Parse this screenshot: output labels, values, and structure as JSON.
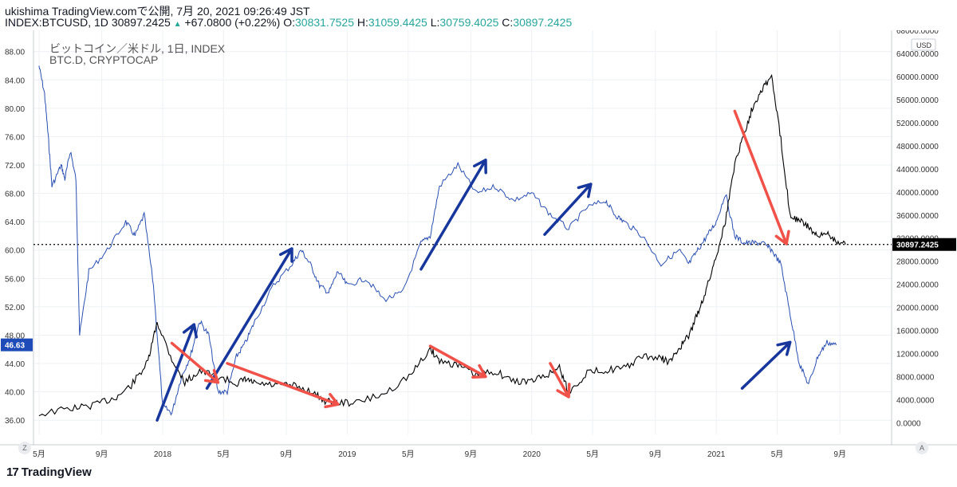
{
  "header": {
    "line1": "ukishima TradingView.comで公開, 7月 20, 2021 09:26:49 JST",
    "symbol": "INDEX:BTCUSD, 1D",
    "last": "30897.2425",
    "change": "+67.0800 (+0.22%)",
    "o_label": "O:",
    "o": "30831.7525",
    "h_label": "H:",
    "h": "31059.4425",
    "l_label": "L:",
    "l": "30759.4025",
    "c_label": "C:",
    "c": "30897.2425"
  },
  "legend": {
    "series1": "ビットコイン／米ドル, 1日, INDEX",
    "series2": "BTC.D, CRYPTOCAP"
  },
  "buttons": {
    "z": "Z",
    "a": "A"
  },
  "brand": {
    "mark": "17",
    "name": "TradingView"
  },
  "colors": {
    "btc": "#000000",
    "dominance": "#2a4fb0",
    "arrow_up": "#17379c",
    "arrow_down": "#f05149",
    "grid": "#eef0f4",
    "axis_text": "#333333"
  },
  "chart_data": {
    "type": "line",
    "title": "ビットコイン／米ドル, 1日, INDEX",
    "x_ticks": [
      "5月",
      "9月",
      "2018",
      "5月",
      "9月",
      "2019",
      "5月",
      "9月",
      "2020",
      "5月",
      "9月",
      "2021",
      "5月",
      "9月"
    ],
    "left_axis": {
      "series": "BTC.D",
      "range": [
        34,
        91
      ],
      "ticks": [
        "36.00",
        "40.00",
        "44.00",
        "48.00",
        "52.00",
        "56.00",
        "60.00",
        "64.00",
        "68.00",
        "72.00",
        "76.00",
        "80.00",
        "84.00",
        "88.00"
      ],
      "current_label": "46.63"
    },
    "right_axis": {
      "series": "BTCUSD",
      "unit": "USD",
      "range": [
        -2000,
        68000
      ],
      "ticks": [
        "0.0000",
        "4000.0000",
        "8000.0000",
        "12000.0000",
        "16000.0000",
        "20000.0000",
        "24000.0000",
        "28000.0000",
        "32000.0000",
        "36000.0000",
        "40000.0000",
        "44000.0000",
        "48000.0000",
        "52000.0000",
        "56000.0000",
        "60000.0000",
        "64000.0000",
        "68000.0000"
      ],
      "current_label": "30897.2425",
      "current_value": 30897.2425
    },
    "series": [
      {
        "name": "ビットコイン／米ドル",
        "axis": "right",
        "x": [
          2017.33,
          2017.5,
          2017.62,
          2017.75,
          2017.83,
          2017.92,
          2017.97,
          2018.05,
          2018.12,
          2018.2,
          2018.3,
          2018.4,
          2018.45,
          2018.5,
          2018.6,
          2018.7,
          2018.8,
          2018.88,
          2018.95,
          2019.05,
          2019.2,
          2019.35,
          2019.45,
          2019.5,
          2019.6,
          2019.7,
          2019.8,
          2019.9,
          2020.0,
          2020.1,
          2020.15,
          2020.2,
          2020.3,
          2020.4,
          2020.5,
          2020.6,
          2020.7,
          2020.75,
          2020.8,
          2020.85,
          2020.9,
          2020.95,
          2021.0,
          2021.05,
          2021.1,
          2021.15,
          2021.2,
          2021.25,
          2021.3,
          2021.35,
          2021.4,
          2021.45,
          2021.5,
          2021.55,
          2021.6,
          2021.65,
          2021.7
        ],
        "values": [
          1500,
          2500,
          3000,
          4500,
          6500,
          10500,
          17500,
          11000,
          7000,
          9000,
          8000,
          6800,
          7500,
          6800,
          6500,
          6500,
          5500,
          3800,
          3500,
          3500,
          5000,
          8500,
          12800,
          10800,
          10000,
          8200,
          9000,
          7200,
          7200,
          8600,
          9700,
          5200,
          8700,
          9200,
          9400,
          11500,
          11200,
          10500,
          13000,
          15000,
          19000,
          23500,
          29000,
          35000,
          45000,
          50000,
          55000,
          58000,
          60000,
          49000,
          36000,
          35000,
          34000,
          32000,
          33000,
          31500,
          30897
        ]
      },
      {
        "name": "BTC.D",
        "axis": "left",
        "x": [
          2017.33,
          2017.36,
          2017.38,
          2017.4,
          2017.45,
          2017.47,
          2017.5,
          2017.53,
          2017.55,
          2017.6,
          2017.7,
          2017.8,
          2017.85,
          2017.9,
          2017.95,
          2018.0,
          2018.05,
          2018.1,
          2018.15,
          2018.2,
          2018.25,
          2018.3,
          2018.35,
          2018.4,
          2018.45,
          2018.5,
          2018.6,
          2018.7,
          2018.75,
          2018.8,
          2018.85,
          2018.9,
          2018.95,
          2019.0,
          2019.1,
          2019.2,
          2019.3,
          2019.4,
          2019.45,
          2019.5,
          2019.6,
          2019.7,
          2019.8,
          2019.9,
          2020.0,
          2020.1,
          2020.2,
          2020.3,
          2020.4,
          2020.45,
          2020.5,
          2020.6,
          2020.7,
          2020.8,
          2020.85,
          2020.9,
          2020.95,
          2021.0,
          2021.05,
          2021.1,
          2021.15,
          2021.2,
          2021.25,
          2021.3,
          2021.35,
          2021.4,
          2021.45,
          2021.5,
          2021.55,
          2021.6,
          2021.65
        ],
        "values": [
          86,
          82,
          76,
          69,
          72,
          70,
          74,
          70,
          48,
          57,
          60,
          64,
          62,
          65,
          55,
          38,
          37,
          42,
          45,
          50,
          48,
          40,
          40,
          45,
          47,
          50,
          55,
          58,
          60,
          58,
          55,
          54,
          57,
          55,
          56,
          53,
          54,
          61,
          62,
          69,
          72,
          68,
          69,
          67,
          68,
          65,
          63,
          66,
          67,
          65,
          64,
          62,
          58,
          60,
          58,
          60,
          62,
          64,
          68,
          62,
          61,
          61,
          61,
          60,
          58,
          51,
          44,
          41,
          45,
          47,
          46.6
        ]
      }
    ],
    "annotations": [
      {
        "kind": "arrow",
        "direction": "up",
        "from": [
          2017.97,
          36
        ],
        "to": [
          2018.17,
          49.5
        ],
        "axis": "left",
        "color": "#17379c"
      },
      {
        "kind": "arrow",
        "direction": "up",
        "from": [
          2018.24,
          40.5
        ],
        "to": [
          2018.7,
          60.2
        ],
        "axis": "left",
        "color": "#17379c"
      },
      {
        "kind": "arrow",
        "direction": "up",
        "from": [
          2019.4,
          57.3
        ],
        "to": [
          2019.75,
          72.7
        ],
        "axis": "left",
        "color": "#17379c"
      },
      {
        "kind": "arrow",
        "direction": "up",
        "from": [
          2020.07,
          62.2
        ],
        "to": [
          2020.32,
          69.3
        ],
        "axis": "left",
        "color": "#17379c"
      },
      {
        "kind": "arrow",
        "direction": "up",
        "from": [
          2021.14,
          40.5
        ],
        "to": [
          2021.4,
          47.0
        ],
        "axis": "left",
        "color": "#17379c"
      },
      {
        "kind": "arrow",
        "direction": "down",
        "from": [
          2018.05,
          13800
        ],
        "to": [
          2018.3,
          7000
        ],
        "axis": "right",
        "color": "#f05149"
      },
      {
        "kind": "arrow",
        "direction": "down",
        "from": [
          2018.35,
          10300
        ],
        "to": [
          2018.95,
          3200
        ],
        "axis": "right",
        "color": "#f05149"
      },
      {
        "kind": "arrow",
        "direction": "down",
        "from": [
          2019.45,
          13300
        ],
        "to": [
          2019.75,
          8000
        ],
        "axis": "right",
        "color": "#f05149"
      },
      {
        "kind": "arrow",
        "direction": "down",
        "from": [
          2020.1,
          10300
        ],
        "to": [
          2020.2,
          4500
        ],
        "axis": "right",
        "color": "#f05149"
      },
      {
        "kind": "arrow",
        "direction": "down",
        "from": [
          2021.1,
          54000
        ],
        "to": [
          2021.38,
          31000
        ],
        "axis": "right",
        "color": "#f05149"
      }
    ]
  }
}
